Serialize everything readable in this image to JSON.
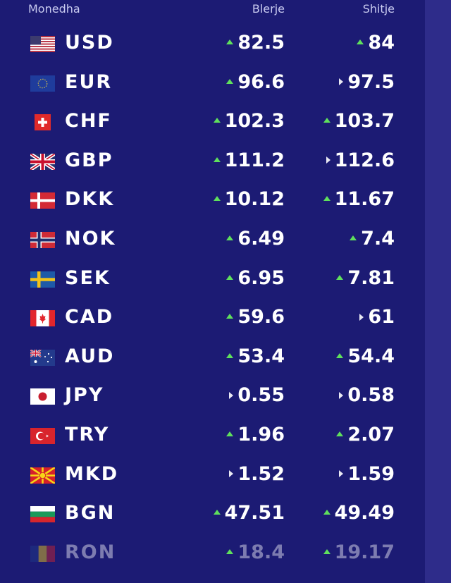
{
  "header": {
    "currency": "Monedha",
    "buy": "Blerje",
    "sell": "Shitje"
  },
  "rates": [
    {
      "code": "USD",
      "flag": "us-flag-icon",
      "buy": "82.5",
      "buy_trend": "up",
      "sell": "84",
      "sell_trend": "up"
    },
    {
      "code": "EUR",
      "flag": "eu-flag-icon",
      "buy": "96.6",
      "buy_trend": "up",
      "sell": "97.5",
      "sell_trend": "flat"
    },
    {
      "code": "CHF",
      "flag": "ch-flag-icon",
      "buy": "102.3",
      "buy_trend": "up",
      "sell": "103.7",
      "sell_trend": "up"
    },
    {
      "code": "GBP",
      "flag": "gb-flag-icon",
      "buy": "111.2",
      "buy_trend": "up",
      "sell": "112.6",
      "sell_trend": "flat"
    },
    {
      "code": "DKK",
      "flag": "dk-flag-icon",
      "buy": "10.12",
      "buy_trend": "up",
      "sell": "11.67",
      "sell_trend": "up"
    },
    {
      "code": "NOK",
      "flag": "no-flag-icon",
      "buy": "6.49",
      "buy_trend": "up",
      "sell": "7.4",
      "sell_trend": "up"
    },
    {
      "code": "SEK",
      "flag": "se-flag-icon",
      "buy": "6.95",
      "buy_trend": "up",
      "sell": "7.81",
      "sell_trend": "up"
    },
    {
      "code": "CAD",
      "flag": "ca-flag-icon",
      "buy": "59.6",
      "buy_trend": "up",
      "sell": "61",
      "sell_trend": "flat"
    },
    {
      "code": "AUD",
      "flag": "au-flag-icon",
      "buy": "53.4",
      "buy_trend": "up",
      "sell": "54.4",
      "sell_trend": "up"
    },
    {
      "code": "JPY",
      "flag": "jp-flag-icon",
      "buy": "0.55",
      "buy_trend": "flat",
      "sell": "0.58",
      "sell_trend": "flat"
    },
    {
      "code": "TRY",
      "flag": "tr-flag-icon",
      "buy": "1.96",
      "buy_trend": "up",
      "sell": "2.07",
      "sell_trend": "up"
    },
    {
      "code": "MKD",
      "flag": "mk-flag-icon",
      "buy": "1.52",
      "buy_trend": "flat",
      "sell": "1.59",
      "sell_trend": "flat"
    },
    {
      "code": "BGN",
      "flag": "bg-flag-icon",
      "buy": "47.51",
      "buy_trend": "up",
      "sell": "49.49",
      "sell_trend": "up"
    },
    {
      "code": "RON",
      "flag": "ro-flag-icon",
      "buy": "18.4",
      "buy_trend": "up",
      "sell": "19.17",
      "sell_trend": "up"
    }
  ],
  "colors": {
    "background": "#1c1b74",
    "side_strip": "#2e2c8a",
    "trend_up": "#5fe05c",
    "trend_flat": "#e8e8f2",
    "text": "#ffffff",
    "header_text": "#c9cbf0"
  }
}
